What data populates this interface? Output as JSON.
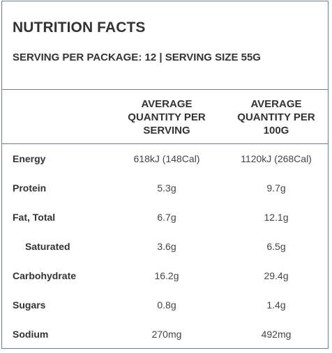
{
  "header": {
    "title": "NUTRITION FACTS",
    "serving": "SERVING PER PACKAGE: 12 | SERVING SIZE 55G"
  },
  "columns": {
    "per_serving": [
      "AVERAGE",
      "QUANTITY PER",
      "SERVING"
    ],
    "per_100g": [
      "AVERAGE",
      "QUANTITY PER",
      "100G"
    ]
  },
  "rows": [
    {
      "label": "Energy",
      "per_serving": "618kJ (148Cal)",
      "per_100g": "1120kJ (268Cal)"
    },
    {
      "label": "Protein",
      "per_serving": "5.3g",
      "per_100g": "9.7g"
    },
    {
      "label": "Fat, Total",
      "per_serving": "6.7g",
      "per_100g": "12.1g"
    },
    {
      "label": "Saturated",
      "per_serving": "3.6g",
      "per_100g": "6.5g"
    },
    {
      "label": "Carbohydrate",
      "per_serving": "16.2g",
      "per_100g": "29.4g"
    },
    {
      "label": "Sugars",
      "per_serving": "0.8g",
      "per_100g": "1.4g"
    },
    {
      "label": "Sodium",
      "per_serving": "270mg",
      "per_100g": "492mg"
    }
  ]
}
